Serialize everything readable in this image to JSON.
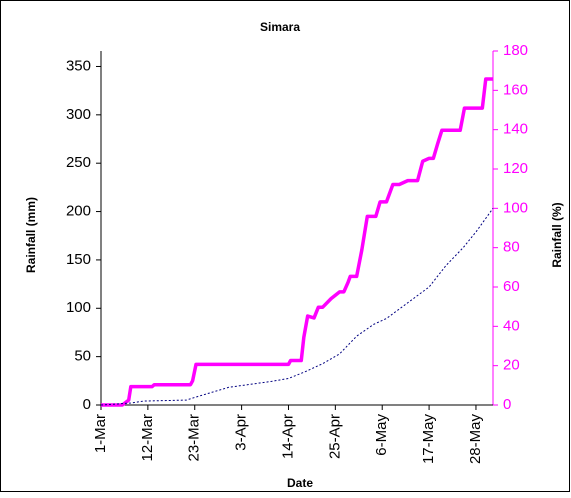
{
  "chart_data": {
    "type": "line",
    "title": "Simara",
    "xlabel": "Date",
    "ylabel": "Rainfall (mm)",
    "y2label": "Rainfall (%)",
    "xlim": [
      0,
      92
    ],
    "xticks": [
      {
        "value": 0,
        "label": "1-Mar"
      },
      {
        "value": 11,
        "label": "12-Mar"
      },
      {
        "value": 22,
        "label": "23-Mar"
      },
      {
        "value": 33,
        "label": "3-Apr"
      },
      {
        "value": 44,
        "label": "14-Apr"
      },
      {
        "value": 55,
        "label": "25-Apr"
      },
      {
        "value": 66,
        "label": "6-May"
      },
      {
        "value": 77,
        "label": "17-May"
      },
      {
        "value": 88,
        "label": "28-May"
      }
    ],
    "ylim": [
      0,
      366
    ],
    "yticks": [
      0,
      50,
      100,
      150,
      200,
      250,
      300,
      350
    ],
    "y2lim": [
      0,
      180
    ],
    "y2ticks": [
      0,
      20,
      40,
      60,
      80,
      100,
      120,
      140,
      160,
      180
    ],
    "y2color": "#ff00ff",
    "series": [
      {
        "name": "Rainfall",
        "color": "#ff00ff",
        "axis": "y",
        "x": [
          0,
          5,
          6.5,
          7,
          12,
          12.5,
          21,
          21.5,
          22.3,
          44,
          44.5,
          47,
          47.6,
          48.5,
          50,
          51,
          52,
          54,
          56,
          57,
          58,
          58.5,
          60,
          61.2,
          62.5,
          64.5,
          65.5,
          67,
          68.5,
          70,
          72,
          74.3,
          75.5,
          77,
          78,
          79,
          80,
          84.3,
          85.3,
          89.5,
          90.3,
          92
        ],
        "values": [
          0,
          0,
          5,
          19,
          19,
          21,
          21,
          25,
          42,
          42,
          46,
          46,
          70,
          92,
          90,
          101,
          101,
          110,
          117,
          117,
          127,
          133,
          133,
          160,
          195,
          195,
          210,
          210,
          228,
          228,
          232,
          232,
          252,
          255,
          255,
          270,
          284,
          284,
          307,
          307,
          337,
          337
        ]
      },
      {
        "name": "Rainfall %",
        "color": "#000080",
        "axis": "y2",
        "x": [
          0,
          7,
          10,
          20,
          23,
          30,
          40,
          44,
          48,
          52,
          56,
          60,
          64,
          67,
          72,
          77,
          81,
          85,
          88,
          92
        ],
        "values": [
          0,
          1,
          2,
          2.5,
          4.5,
          9,
          12,
          13.5,
          17,
          21,
          26,
          35,
          41,
          44,
          52,
          60,
          71,
          80,
          88,
          100
        ]
      }
    ]
  }
}
